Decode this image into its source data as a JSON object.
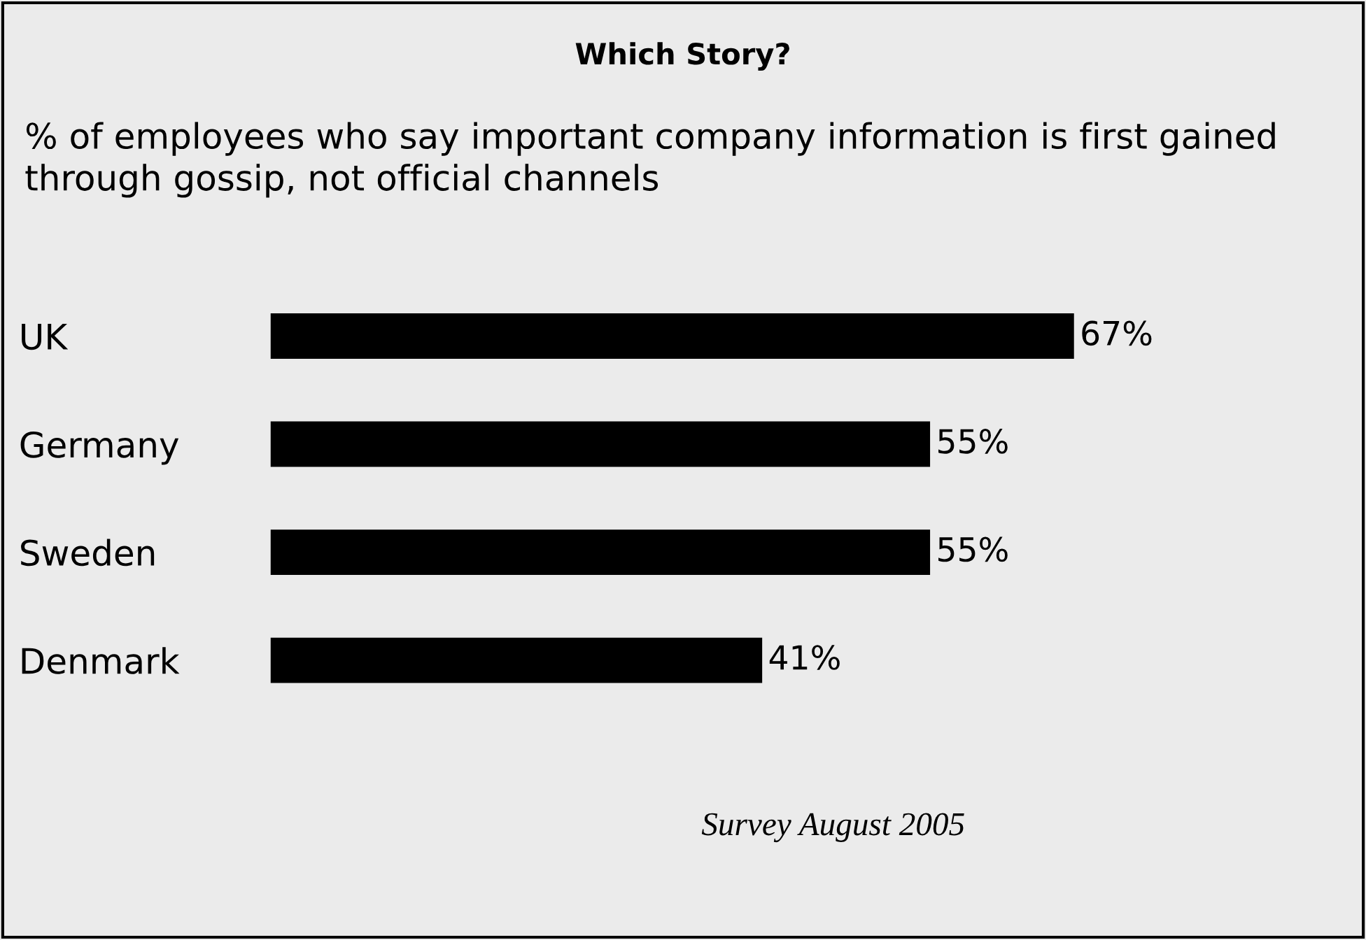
{
  "chart_data": {
    "type": "bar",
    "orientation": "horizontal",
    "title": "Which Story?",
    "subtitle": "% of employees who say important company information is first gained through gossip, not official channels",
    "categories": [
      "UK",
      "Germany",
      "Sweden",
      "Denmark"
    ],
    "values": [
      67,
      55,
      55,
      41
    ],
    "value_labels": [
      "67%",
      "55%",
      "55%",
      "41%"
    ],
    "color": "#000000",
    "annotations": [
      "Survey August 2005"
    ]
  }
}
